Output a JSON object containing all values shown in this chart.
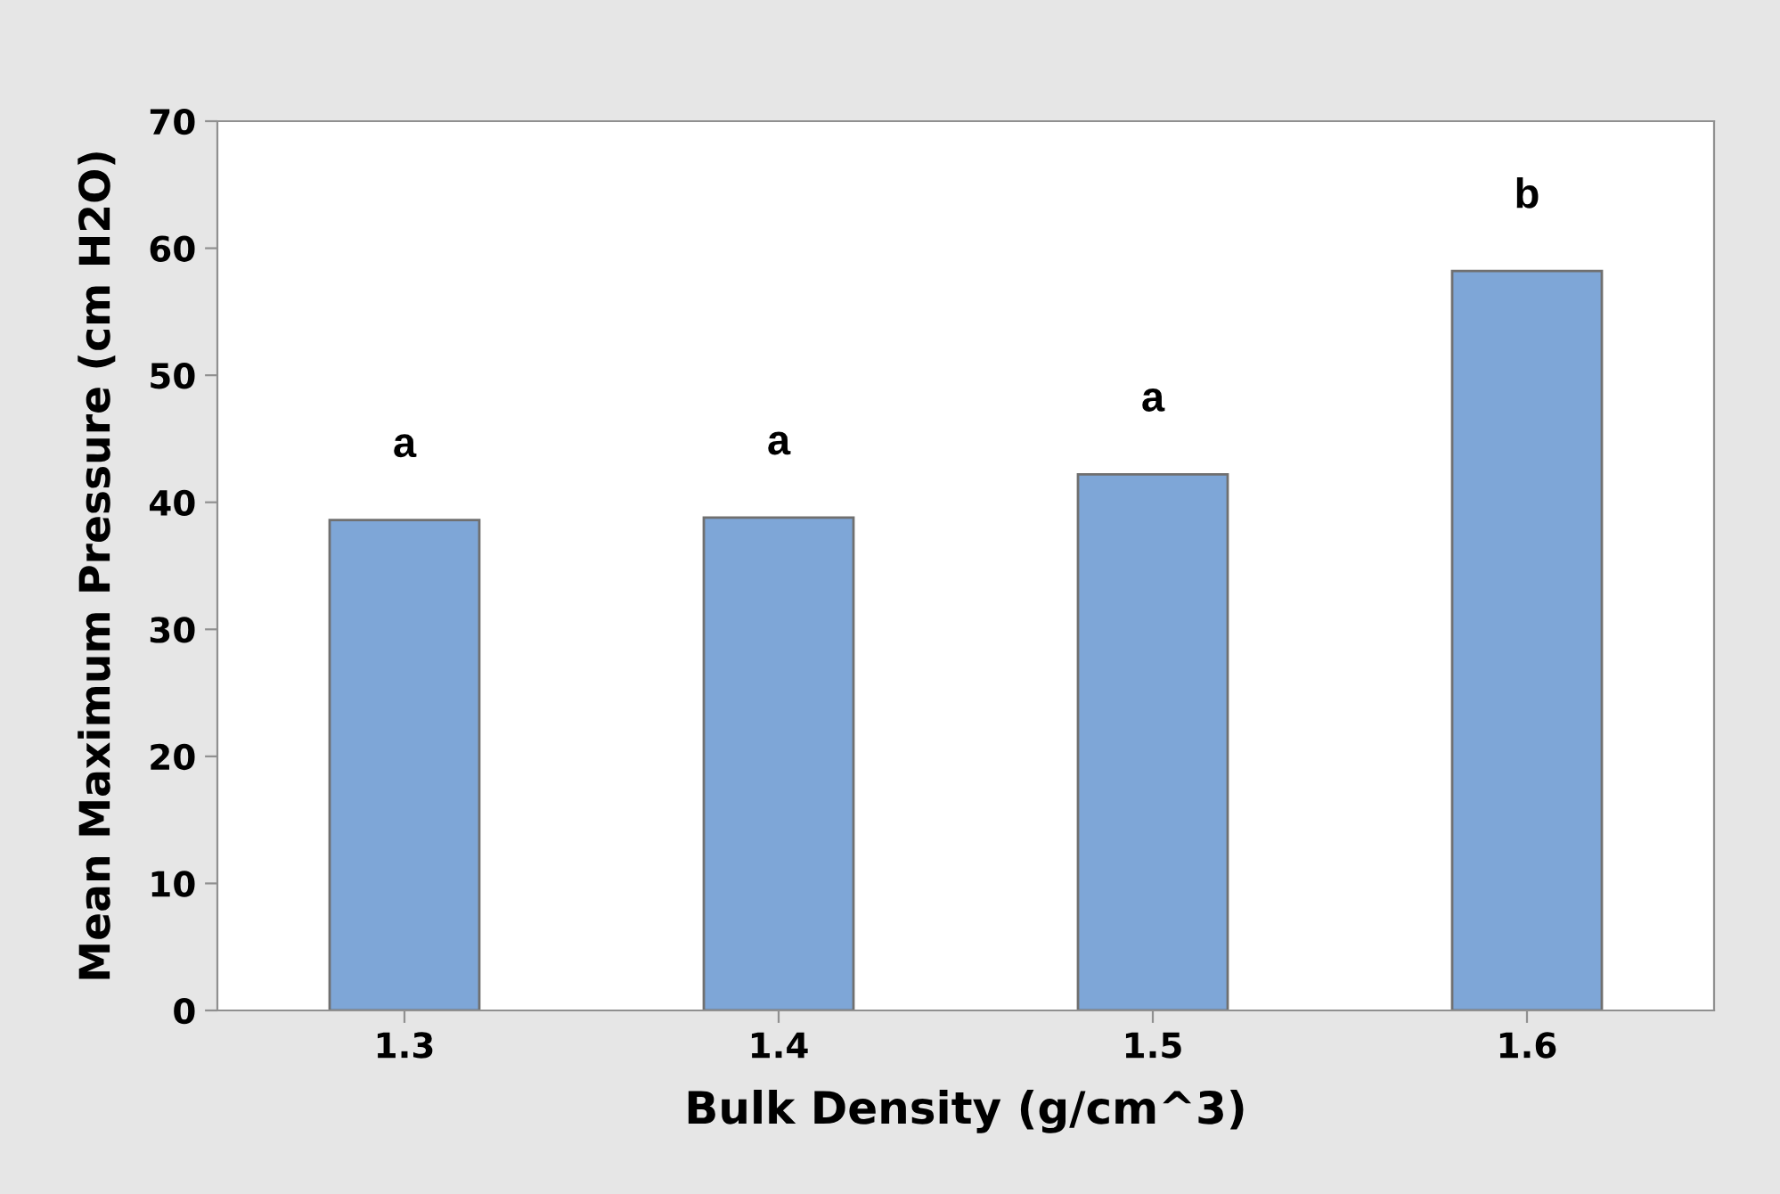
{
  "chart_data": {
    "type": "bar",
    "xlabel": "Bulk Density (g/cm^3)",
    "ylabel": "Mean Maximum Pressure (cm H2O)",
    "categories": [
      "1.3",
      "1.4",
      "1.5",
      "1.6"
    ],
    "values": [
      38.6,
      38.8,
      42.2,
      58.2
    ],
    "color": "#7ea6d7",
    "ylim": [
      0,
      70
    ],
    "yticks": [
      0,
      10,
      20,
      30,
      40,
      50,
      60,
      70
    ],
    "grid": false,
    "annotations": [
      {
        "text": "a",
        "x": "1.3",
        "y": 38.6
      },
      {
        "text": "a",
        "x": "1.4",
        "y": 38.8
      },
      {
        "text": "a",
        "x": "1.5",
        "y": 42.2
      },
      {
        "text": "b",
        "x": "1.6",
        "y": 58.2
      }
    ]
  }
}
